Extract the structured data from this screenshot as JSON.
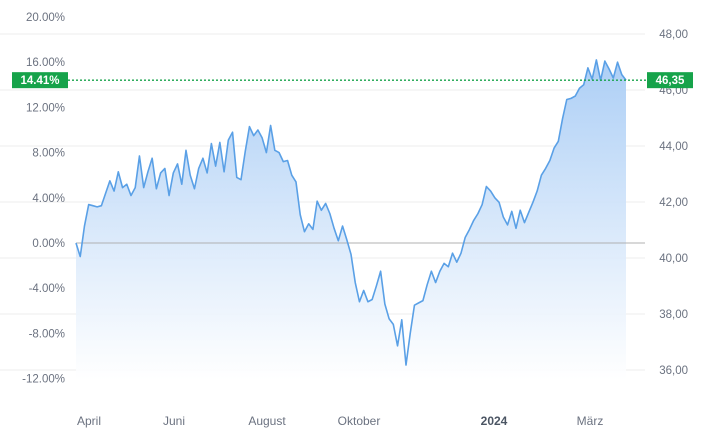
{
  "chart_data": {
    "type": "area",
    "title": "",
    "xlabel": "",
    "ylabel": "",
    "left_axis": {
      "unit": "percent",
      "range": [
        -14,
        20
      ],
      "ticks": [
        "20.00%",
        "16.00%",
        "12.00%",
        "8.00%",
        "4.00%",
        "0.00%",
        "-4.00%",
        "-8.00%",
        "-12.00%"
      ]
    },
    "right_axis": {
      "unit": "price",
      "range": [
        34.8,
        48.4
      ],
      "ticks": [
        "48,00",
        "46,00",
        "44,00",
        "42,00",
        "40,00",
        "38,00",
        "36,00"
      ]
    },
    "x_axis": {
      "labels": [
        {
          "text": "April",
          "bold": false
        },
        {
          "text": "Juni",
          "bold": false
        },
        {
          "text": "August",
          "bold": false
        },
        {
          "text": "Oktober",
          "bold": false
        },
        {
          "text": "2024",
          "bold": true
        },
        {
          "text": "März",
          "bold": false
        }
      ]
    },
    "baseline_percent": 0,
    "current": {
      "percent_label": "14.41%",
      "price_label": "46,35",
      "percent": 14.41
    },
    "grid": "horizontal",
    "colors": {
      "line": "#5aa0e6",
      "fill_top": "#a8ccf5",
      "fill_bottom": "#ffffff",
      "badge": "#16a34a",
      "grid": "#ececec",
      "baseline": "#b0b0b0"
    },
    "series": [
      {
        "values": [
          0.0,
          -1.2,
          1.5,
          3.4,
          3.3,
          3.2,
          3.3,
          4.4,
          5.5,
          4.6,
          6.3,
          4.9,
          5.2,
          4.2,
          4.9,
          7.7,
          4.9,
          6.3,
          7.5,
          4.8,
          6.2,
          6.6,
          4.2,
          6.2,
          7.0,
          5.2,
          8.2,
          6.0,
          4.8,
          6.6,
          7.5,
          6.2,
          8.8,
          6.8,
          8.9,
          6.3,
          9.1,
          9.8,
          5.8,
          5.6,
          8.1,
          10.3,
          9.5,
          10.0,
          9.3,
          8.0,
          10.4,
          8.2,
          8.0,
          7.2,
          7.3,
          6.0,
          5.4,
          2.5,
          1.0,
          1.7,
          1.2,
          3.7,
          2.9,
          3.5,
          2.6,
          1.3,
          0.2,
          1.5,
          0.3,
          -1.0,
          -3.5,
          -5.2,
          -4.2,
          -5.2,
          -5.0,
          -3.8,
          -2.5,
          -5.4,
          -6.7,
          -7.2,
          -9.1,
          -6.8,
          -10.8,
          -8.0,
          -5.5,
          -5.3,
          -5.1,
          -3.7,
          -2.5,
          -3.5,
          -2.5,
          -1.8,
          -2.1,
          -0.9,
          -1.7,
          -0.9,
          0.5,
          1.2,
          2.0,
          2.6,
          3.4,
          5.0,
          4.6,
          4.0,
          3.6,
          2.3,
          1.6,
          2.8,
          1.3,
          2.9,
          1.8,
          2.7,
          3.6,
          4.6,
          6.0,
          6.6,
          7.3,
          8.4,
          9.0,
          11.0,
          12.7,
          12.8,
          13.0,
          13.7,
          14.0,
          15.5,
          14.5,
          16.2,
          14.4,
          16.1,
          15.4,
          14.6,
          16.0,
          14.9,
          14.41
        ]
      }
    ]
  }
}
